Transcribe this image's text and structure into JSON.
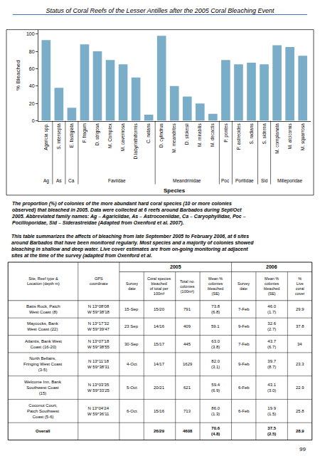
{
  "chart_data": [
    {
      "type": "bar",
      "title": "Status of Coral Reefs of the Lesser Antilles after the 2005 Coral Bleaching Event",
      "ylabel": "% Bleached",
      "xlabel": "Species",
      "categories": [
        "Agaricia spp.",
        "S. intersepta",
        "E. fastigiata",
        "F. fragum",
        "D. strigosa",
        "M. Complex",
        "M. cavernosa",
        "D.labyrinthiformis",
        "C. natans",
        "D. cylindrus",
        "M. meandrites",
        "D. stokesii",
        "M. mirabilis",
        "M. decactis",
        "P. pontes",
        "P. astreoides",
        "S. radians",
        "S. siderea",
        "M. complanata",
        "M. alcicornis",
        "M. squarrosa"
      ],
      "values": [
        93,
        38,
        15,
        88,
        80,
        70,
        65,
        50,
        7,
        98,
        40,
        28,
        20,
        8,
        70,
        65,
        67,
        65,
        87,
        85,
        75
      ],
      "color": "#7aaec8",
      "ylim": [
        0,
        105
      ],
      "yticks": [
        0,
        20,
        40,
        60,
        80,
        100
      ],
      "grid": false,
      "category_groups": [
        {
          "label": "Ag",
          "first": 0,
          "last": 0
        },
        {
          "label": "As",
          "first": 1,
          "last": 1
        },
        {
          "label": "Ca",
          "first": 2,
          "last": 2
        },
        {
          "label": "Faviidae",
          "first": 3,
          "last": 8
        },
        {
          "label": "Meandrinidae",
          "first": 9,
          "last": 13
        },
        {
          "label": "Poc",
          "first": 14,
          "last": 14
        },
        {
          "label": "Poritidae",
          "first": 15,
          "last": 16
        },
        {
          "label": "Sid",
          "first": 17,
          "last": 17
        },
        {
          "label": "Milleporidae",
          "first": 18,
          "last": 20
        }
      ],
      "captions": [
        "The proportion (%) of colonies of the more abundant hard coral species (10 or more colonies\nobserved) that bleached in 2005. Data were collected at 6 reefs around Barbados during Sept/Oct\n2005. Abbreviated family names: Ag – Agariciidae, As – Astrocoeniidae, Ca – Caryophyllidae, Poc –\nPocilloporidae, Sid – Siderastreidae (Adapted from Oxenford et al. 2007).",
        "This table summarizes the affects of bleaching from late September 2005 to February 2006, at 6 sites\naround Barbados that have been monitored regularly. Most species and a majority of colonies showed\nbleaching in shallow and deep water. Live cover estimates are from on-going monitoring at adjacent\nsites at the time of the survey (adapted from Oxenford et al."
      ]
    },
    {
      "type": "table",
      "column_groups": [
        {
          "label": "2005",
          "first": 2,
          "last": 5
        },
        {
          "label": "2006",
          "first": 6,
          "last": 8
        }
      ],
      "columns": [
        "Site, Reef type &\nLocation (depth m)",
        "GPS\ncoordinate",
        "Survey\ndate",
        "Coral species\nbleached\nof total per\n100m²",
        "Total no.\ncolonies\n(100m²)",
        "Mean %\ncolonies\nbleached\n(SE)",
        "Survey\ndate",
        "Mean %\ncolonies\nbleached\n(SE)",
        "%\nLive\ncoral\ncover"
      ],
      "rows": [
        [
          "Batts Rock, Patch\nWest Coast (8)",
          "N 13°08'08\nW 59°38'18",
          "15-Sep",
          "15/20",
          "791",
          "73.8\n(6.8)",
          "7-Feb",
          "46.0\n(1.7)",
          "29.9"
        ],
        [
          "Maycocks, Bank\nWest Coast (22)",
          "N 13°17'32\nW 59°39'47",
          "23 Sep",
          "14/16",
          "409",
          "59.1",
          "9-Feb",
          "32.6\n(2.7)",
          "37.8"
        ],
        [
          "Atlantis, Bank West\nCoast (16-20)",
          "N 13°07'18\nW 59°38'55",
          "30-Sep",
          "15/17",
          "445",
          "63.0\n(3.8)",
          "7-Feb",
          "43.7\n(6.7)",
          "34"
        ],
        [
          "North Bellairs,\nFringing West Coast\n(3-5)",
          "N 13°11'18\nW 59°38'31",
          "4-Oct",
          "14/17",
          "1629",
          "82.0\n(3.1)",
          "9-Feb",
          "39.7\n(8.7)",
          "23.3"
        ],
        [
          "Welcome Inn, Bank\nSouthwest Coast\n(15)",
          "N 13°03'35\nW 59°33'25",
          "5-Oct",
          "20/21",
          "621",
          "59.4\n(6.9)",
          "6-Feb",
          "43.1\n(3.0)",
          "22.9"
        ],
        [
          "Coconut Court,\nPatch Southwest\nCoast (5-6)",
          "N 13°04'24\nW 59°36'11",
          "6-Oct",
          "15/16",
          "713",
          "86.0\n(1.3)",
          "6-Feb",
          "19.9\n(1.5)",
          "25.8"
        ],
        [
          "Overall",
          null,
          null,
          "26/29",
          "4608",
          "70.6\n(4.8)",
          null,
          "37.5\n(2.5)",
          "28.9"
        ]
      ],
      "page_number": "99"
    }
  ]
}
